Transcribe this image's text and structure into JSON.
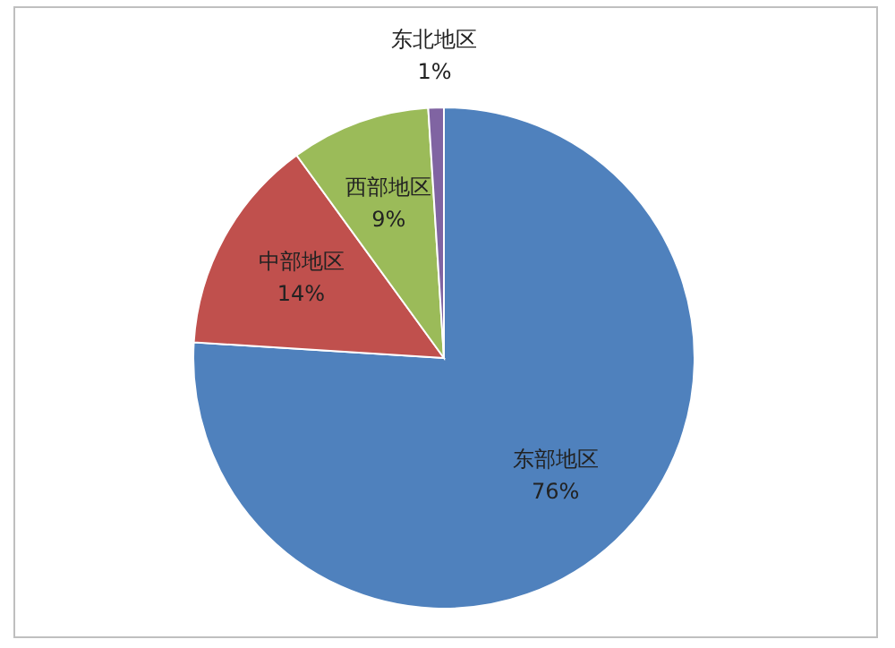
{
  "chart_data": {
    "type": "pie",
    "categories": [
      "东部地区",
      "中部地区",
      "西部地区",
      "东北地区"
    ],
    "values": [
      76,
      14,
      9,
      1
    ],
    "colors": [
      "#4f81bd",
      "#c0504d",
      "#9bbb59",
      "#8064a2"
    ],
    "value_labels": [
      "76%",
      "14%",
      "9%",
      "1%"
    ]
  }
}
